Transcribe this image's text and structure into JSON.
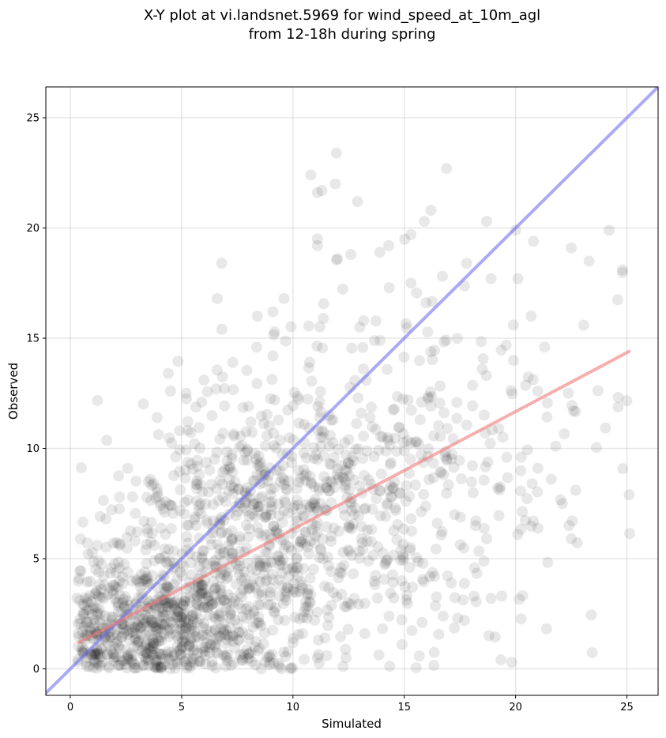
{
  "chart_data": {
    "type": "scatter",
    "title_lines": [
      "X-Y plot at vi.landsnet.5969 for wind_speed_at_10m_agl",
      "from 12-18h during spring"
    ],
    "xlabel": "Simulated",
    "ylabel": "Observed",
    "xlim": [
      -1.1,
      26.4
    ],
    "ylim": [
      -1.2,
      26.4
    ],
    "xticks": [
      0,
      5,
      10,
      15,
      20,
      25
    ],
    "yticks": [
      0,
      5,
      10,
      15,
      20,
      25
    ],
    "grid": true,
    "colors": {
      "points": "#000000",
      "identity_line": "#6464f0",
      "regression_line": "#f07878"
    },
    "identity_line": {
      "x": [
        -1.1,
        26.4
      ],
      "y": [
        -1.1,
        26.4
      ]
    },
    "regression_line": {
      "x": [
        0.4,
        25.1
      ],
      "y": [
        1.2,
        14.4
      ]
    },
    "cloud": [
      {
        "cx": 4,
        "cy": 2,
        "sx": 2.5,
        "sy": 1.6,
        "n": 650,
        "seed": 11
      },
      {
        "cx": 8,
        "cy": 6,
        "sx": 3.0,
        "sy": 3.0,
        "n": 600,
        "seed": 23
      },
      {
        "cx": 13,
        "cy": 8,
        "sx": 3.5,
        "sy": 3.8,
        "n": 350,
        "seed": 37
      },
      {
        "cx": 18,
        "cy": 9,
        "sx": 3.5,
        "sy": 4.5,
        "n": 110,
        "seed": 51
      }
    ],
    "points": [
      {
        "x": 11.95,
        "y": 23.4
      },
      {
        "x": 10.8,
        "y": 22.4
      },
      {
        "x": 16.9,
        "y": 22.7
      },
      {
        "x": 11.1,
        "y": 21.6
      },
      {
        "x": 11.3,
        "y": 21.7
      },
      {
        "x": 11.9,
        "y": 22.0
      },
      {
        "x": 12.9,
        "y": 21.2
      },
      {
        "x": 16.2,
        "y": 20.8
      },
      {
        "x": 15.9,
        "y": 20.3
      },
      {
        "x": 18.7,
        "y": 20.3
      },
      {
        "x": 11.1,
        "y": 19.5
      },
      {
        "x": 11.1,
        "y": 19.2
      },
      {
        "x": 14.3,
        "y": 19.2
      },
      {
        "x": 15.3,
        "y": 19.7
      },
      {
        "x": 20.0,
        "y": 19.9
      },
      {
        "x": 20.8,
        "y": 19.4
      },
      {
        "x": 22.5,
        "y": 19.1
      },
      {
        "x": 24.2,
        "y": 19.9
      },
      {
        "x": 23.3,
        "y": 18.5
      },
      {
        "x": 24.8,
        "y": 18.1
      },
      {
        "x": 6.8,
        "y": 18.4
      },
      {
        "x": 12.0,
        "y": 18.6
      },
      {
        "x": 12.6,
        "y": 18.8
      },
      {
        "x": 13.9,
        "y": 18.9
      },
      {
        "x": 17.8,
        "y": 18.4
      },
      {
        "x": 18.9,
        "y": 17.7
      },
      {
        "x": 20.1,
        "y": 17.7
      },
      {
        "x": 6.6,
        "y": 16.8
      },
      {
        "x": 8.4,
        "y": 16.0
      },
      {
        "x": 9.1,
        "y": 16.2
      },
      {
        "x": 9.6,
        "y": 16.8
      },
      {
        "x": 20.7,
        "y": 16.0
      },
      {
        "x": 19.9,
        "y": 15.6
      },
      {
        "x": 21.3,
        "y": 14.6
      },
      {
        "x": 22.6,
        "y": 11.7
      },
      {
        "x": 25.1,
        "y": 7.9
      },
      {
        "x": 22.7,
        "y": 8.1
      },
      {
        "x": 22.1,
        "y": 7.5
      },
      {
        "x": 22.4,
        "y": 6.5
      },
      {
        "x": 22.5,
        "y": 5.9
      },
      {
        "x": 20.8,
        "y": 6.7
      },
      {
        "x": 20.1,
        "y": 6.1
      },
      {
        "x": 21.0,
        "y": 9.1
      },
      {
        "x": 21.6,
        "y": 8.6
      },
      {
        "x": 21.8,
        "y": 10.1
      },
      {
        "x": 19.6,
        "y": 9.6
      },
      {
        "x": 19.2,
        "y": 8.2
      },
      {
        "x": 18.7,
        "y": 5.9
      },
      {
        "x": 18.9,
        "y": 3.2
      },
      {
        "x": 17.4,
        "y": 2.3
      },
      {
        "x": 17.7,
        "y": 2.2
      },
      {
        "x": 15.8,
        "y": 2.1
      },
      {
        "x": 14.9,
        "y": 1.1
      },
      {
        "x": 11.1,
        "y": 0.5
      },
      {
        "x": 9.4,
        "y": 0.1
      },
      {
        "x": 0.6,
        "y": 0.7
      },
      {
        "x": 1.2,
        "y": 5.6
      },
      {
        "x": 1.6,
        "y": 6.8
      },
      {
        "x": 2.8,
        "y": 7.8
      },
      {
        "x": 3.6,
        "y": 8.6
      },
      {
        "x": 3.9,
        "y": 11.4
      },
      {
        "x": 4.4,
        "y": 13.4
      },
      {
        "x": 4.5,
        "y": 12.6
      },
      {
        "x": 6.0,
        "y": 13.1
      },
      {
        "x": 7.3,
        "y": 13.9
      },
      {
        "x": 5.2,
        "y": 12.5
      }
    ]
  }
}
